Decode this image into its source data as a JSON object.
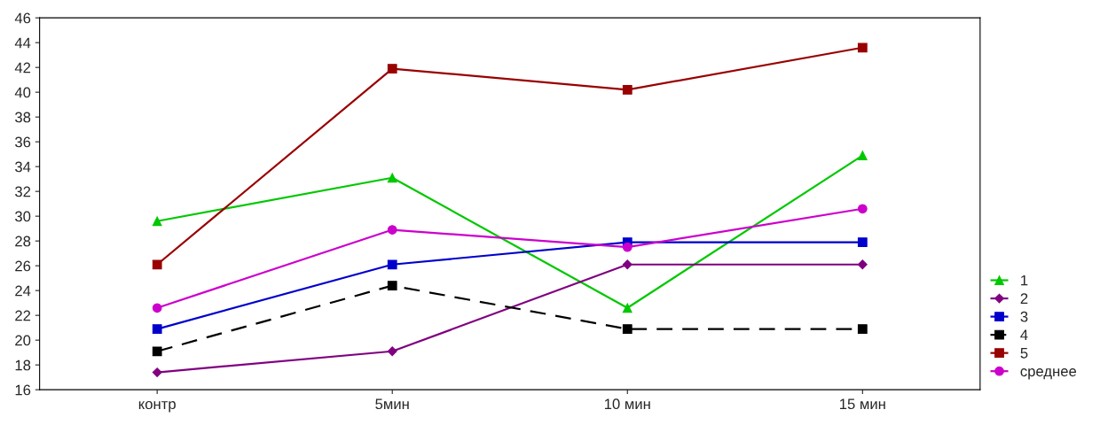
{
  "chart_data": {
    "type": "line",
    "categories": [
      "контр",
      "5мин",
      "10 мин",
      "15 мин"
    ],
    "series": [
      {
        "name": "1",
        "color": "#00c800",
        "marker": "triangle",
        "line_style": "solid",
        "values": [
          29.6,
          33.1,
          22.6,
          34.9
        ]
      },
      {
        "name": "2",
        "color": "#800080",
        "marker": "diamond",
        "line_style": "solid",
        "values": [
          17.4,
          19.1,
          26.1,
          26.1
        ]
      },
      {
        "name": "3",
        "color": "#0000cc",
        "marker": "square",
        "line_style": "solid",
        "values": [
          20.9,
          26.1,
          27.9,
          27.9
        ]
      },
      {
        "name": "4",
        "color": "#000000",
        "marker": "square",
        "line_style": "dashed",
        "values": [
          19.1,
          24.4,
          20.9,
          20.9
        ]
      },
      {
        "name": "5",
        "color": "#990000",
        "marker": "square",
        "line_style": "solid",
        "values": [
          26.1,
          41.9,
          40.2,
          43.6
        ]
      },
      {
        "name": "среднее",
        "color": "#cc00cc",
        "marker": "circle",
        "line_style": "solid",
        "values": [
          22.6,
          28.9,
          27.5,
          30.6
        ]
      }
    ],
    "ylim": [
      16,
      46
    ],
    "yticks": [
      16,
      18,
      20,
      22,
      24,
      26,
      28,
      30,
      32,
      34,
      36,
      38,
      40,
      42,
      44,
      46
    ],
    "grid": false,
    "legend": "bottom right"
  }
}
